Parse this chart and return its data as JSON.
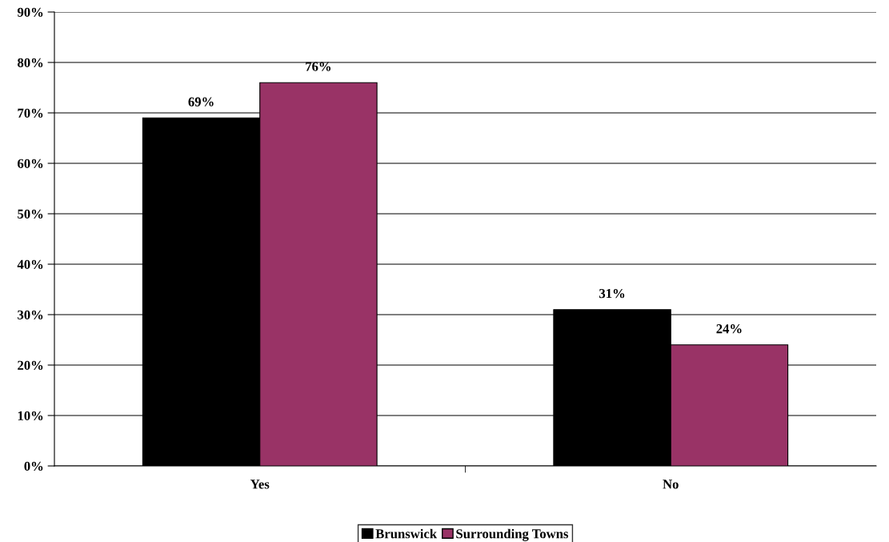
{
  "chart_data": {
    "type": "bar",
    "categories": [
      "Yes",
      "No"
    ],
    "series": [
      {
        "name": "Brunswick",
        "color": "#000000",
        "values": [
          69,
          31
        ],
        "value_labels": [
          "69%",
          "31%"
        ]
      },
      {
        "name": "Surrounding Towns",
        "color": "#993366",
        "values": [
          76,
          24
        ],
        "value_labels": [
          "76%",
          "24%"
        ]
      }
    ],
    "ylim": [
      0,
      90
    ],
    "yticks": [
      {
        "value": 0,
        "label": "0%"
      },
      {
        "value": 10,
        "label": "10%"
      },
      {
        "value": 20,
        "label": "20%"
      },
      {
        "value": 30,
        "label": "30%"
      },
      {
        "value": 40,
        "label": "40%"
      },
      {
        "value": 50,
        "label": "50%"
      },
      {
        "value": 60,
        "label": "60%"
      },
      {
        "value": 70,
        "label": "70%"
      },
      {
        "value": 80,
        "label": "80%"
      },
      {
        "value": 90,
        "label": "90%"
      }
    ],
    "grid": "y",
    "legend": "bottom"
  }
}
